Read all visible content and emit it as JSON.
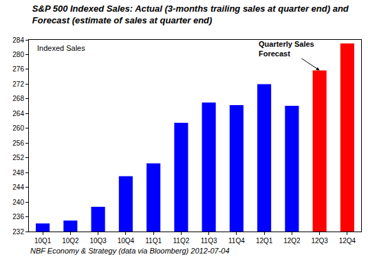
{
  "chart_data": {
    "type": "bar",
    "title": "S&P 500 Indexed Sales: Actual (3-months trailing sales at quarter end) and\nForecast (estimate of sales at quarter end)",
    "categories": [
      "10Q1",
      "10Q2",
      "10Q3",
      "10Q4",
      "11Q1",
      "11Q2",
      "11Q3",
      "11Q4",
      "12Q1",
      "12Q2",
      "12Q3",
      "12Q4"
    ],
    "values": [
      234.2,
      235.0,
      238.7,
      247.0,
      250.5,
      261.5,
      267.0,
      266.3,
      272.0,
      266.1,
      275.7,
      283.0
    ],
    "colors": [
      "#0000ff",
      "#0000ff",
      "#0000ff",
      "#0000ff",
      "#0000ff",
      "#0000ff",
      "#0000ff",
      "#0000ff",
      "#0000ff",
      "#0000ff",
      "#ff0000",
      "#ff0000"
    ],
    "ylim": [
      232,
      284
    ],
    "yticks": [
      232,
      236,
      240,
      244,
      248,
      252,
      256,
      260,
      264,
      268,
      272,
      276,
      280,
      284
    ],
    "grid": false,
    "annotations": [
      {
        "text": "Indexed Sales"
      },
      {
        "text": "Quarterly Sales\nForecast",
        "target": "12Q3"
      }
    ],
    "source": "NBF Economy & Strategy (data via Bloomberg) 2012-07-04"
  }
}
